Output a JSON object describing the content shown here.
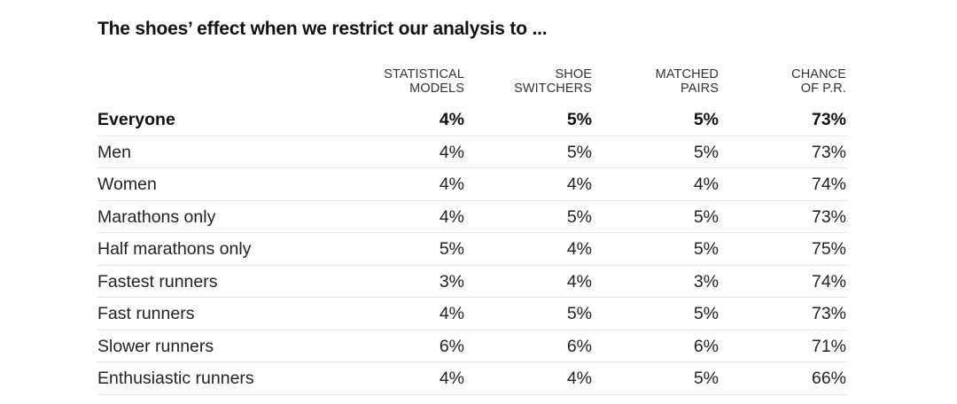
{
  "title": "The shoes’ effect when we restrict our analysis to ...",
  "chart_data": {
    "type": "table",
    "title": "The shoes’ effect when we restrict our analysis to ...",
    "columns": [
      {
        "line1": "STATISTICAL",
        "line2": "MODELS"
      },
      {
        "line1": "SHOE",
        "line2": "SWITCHERS"
      },
      {
        "line1": "MATCHED",
        "line2": "PAIRS"
      },
      {
        "line1": "CHANCE",
        "line2": "OF P.R."
      }
    ],
    "rows": [
      {
        "label": "Everyone",
        "emphasis": true,
        "values": [
          "4%",
          "5%",
          "5%",
          "73%"
        ]
      },
      {
        "label": "Men",
        "emphasis": false,
        "values": [
          "4%",
          "5%",
          "5%",
          "73%"
        ]
      },
      {
        "label": "Women",
        "emphasis": false,
        "values": [
          "4%",
          "4%",
          "4%",
          "74%"
        ]
      },
      {
        "label": "Marathons only",
        "emphasis": false,
        "values": [
          "4%",
          "5%",
          "5%",
          "73%"
        ]
      },
      {
        "label": "Half marathons only",
        "emphasis": false,
        "values": [
          "5%",
          "4%",
          "5%",
          "75%"
        ]
      },
      {
        "label": "Fastest runners",
        "emphasis": false,
        "values": [
          "3%",
          "4%",
          "3%",
          "74%"
        ]
      },
      {
        "label": "Fast runners",
        "emphasis": false,
        "values": [
          "4%",
          "5%",
          "5%",
          "73%"
        ]
      },
      {
        "label": "Slower runners",
        "emphasis": false,
        "values": [
          "6%",
          "6%",
          "6%",
          "71%"
        ]
      },
      {
        "label": "Enthusiastic runners",
        "emphasis": false,
        "values": [
          "4%",
          "4%",
          "5%",
          "66%"
        ]
      }
    ]
  }
}
